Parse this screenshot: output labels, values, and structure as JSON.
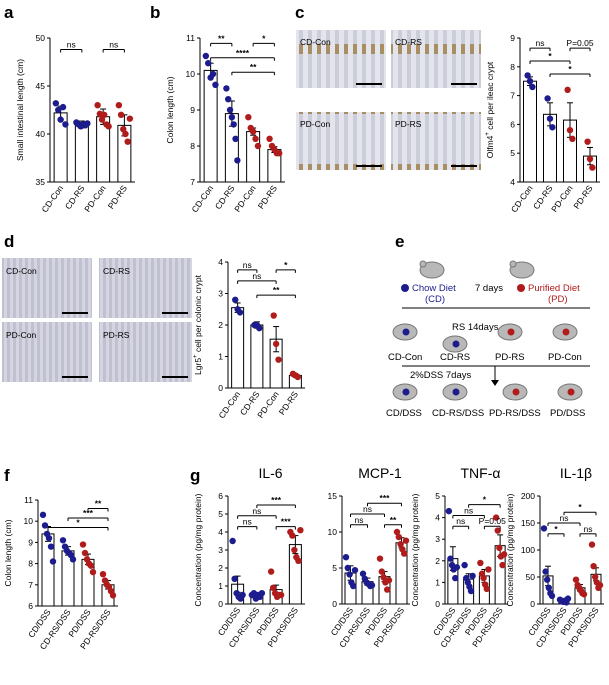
{
  "figure": {
    "panel_letters": [
      "a",
      "b",
      "c",
      "d",
      "e",
      "f",
      "g"
    ],
    "colors": {
      "chow": "#1c1c8e",
      "purified": "#b01c1c",
      "bar_fill": "#ffffff"
    }
  },
  "chart_data": [
    {
      "id": "a",
      "type": "bar",
      "ylabel": "Small intestinal length (cm)",
      "ylim": [
        35,
        50
      ],
      "ticks": [
        35,
        40,
        45,
        50
      ],
      "categories": [
        "CD-Con",
        "CD-RS",
        "PD-Con",
        "PD-RS"
      ],
      "colors": [
        "#1c1c8e",
        "#1c1c8e",
        "#b01c1c",
        "#b01c1c"
      ],
      "means": [
        42.2,
        41.0,
        41.8,
        40.9
      ],
      "errors": [
        0.7,
        0.35,
        0.8,
        1.1
      ],
      "points": [
        [
          43.2,
          42.5,
          41.5,
          42.8,
          41.0
        ],
        [
          41.2,
          41.0,
          40.8,
          41.0,
          40.9,
          41.1
        ],
        [
          43.0,
          42.1,
          41.5,
          42.0,
          41.0,
          40.8
        ],
        [
          43.0,
          42.0,
          40.5,
          40.0,
          39.2,
          41.6
        ]
      ],
      "sig": [
        {
          "from": 0,
          "to": 1,
          "label": "ns",
          "y": 48.8
        },
        {
          "from": 2,
          "to": 3,
          "label": "ns",
          "y": 48.8
        }
      ]
    },
    {
      "id": "b",
      "type": "bar",
      "ylabel": "Colon length (cm)",
      "ylim": [
        7,
        11
      ],
      "ticks": [
        7,
        8,
        9,
        10,
        11
      ],
      "categories": [
        "CD-Con",
        "CD-RS",
        "PD-Con",
        "PD-RS"
      ],
      "colors": [
        "#1c1c8e",
        "#1c1c8e",
        "#b01c1c",
        "#b01c1c"
      ],
      "means": [
        10.1,
        8.9,
        8.4,
        7.9
      ],
      "errors": [
        0.2,
        0.35,
        0.1,
        0.08
      ],
      "points": [
        [
          10.5,
          10.3,
          9.9,
          10.0,
          9.7
        ],
        [
          9.6,
          9.3,
          9.0,
          8.8,
          8.6,
          8.2,
          7.6
        ],
        [
          8.8,
          8.5,
          8.4,
          8.2,
          8.0
        ],
        [
          8.2,
          8.0,
          7.9,
          7.8,
          7.8
        ]
      ],
      "sig": [
        {
          "from": 0,
          "to": 1,
          "label": "**",
          "y": 10.85
        },
        {
          "from": 2,
          "to": 3,
          "label": "*",
          "y": 10.85
        },
        {
          "from": 0,
          "to": 3,
          "label": "****",
          "y": 10.45
        },
        {
          "from": 1,
          "to": 3,
          "label": "**",
          "y": 10.05
        }
      ]
    },
    {
      "id": "c",
      "type": "bar",
      "ylabel_main": "Olfm4",
      "ylabel_sup": "+",
      "ylabel_rest": " cell per ileac crypt",
      "ylim": [
        4,
        9
      ],
      "ticks": [
        4,
        5,
        6,
        7,
        8,
        9
      ],
      "categories": [
        "CD-Con",
        "CD-RS",
        "PD-Con",
        "PD-RS"
      ],
      "colors": [
        "#1c1c8e",
        "#1c1c8e",
        "#b01c1c",
        "#b01c1c"
      ],
      "means": [
        7.5,
        6.35,
        6.15,
        4.9
      ],
      "errors": [
        0.15,
        0.4,
        0.6,
        0.3
      ],
      "points": [
        [
          7.7,
          7.5,
          7.3
        ],
        [
          6.9,
          6.2,
          5.9
        ],
        [
          7.2,
          5.8,
          5.5
        ],
        [
          5.4,
          4.8,
          4.5
        ]
      ],
      "sig": [
        {
          "from": 0,
          "to": 1,
          "label": "ns",
          "y": 8.65
        },
        {
          "from": 2,
          "to": 3,
          "label": "P=0.05",
          "y": 8.65
        },
        {
          "from": 0,
          "to": 2,
          "label": "*",
          "y": 8.2
        },
        {
          "from": 1,
          "to": 3,
          "label": "*",
          "y": 7.75
        }
      ]
    },
    {
      "id": "d",
      "type": "bar",
      "ylabel_main": "Lgr5",
      "ylabel_sup": "+",
      "ylabel_rest": " cell per colonic crypt",
      "ylim": [
        0,
        4
      ],
      "ticks": [
        0,
        1,
        2,
        3,
        4
      ],
      "categories": [
        "CD-Con",
        "CD-RS",
        "PD-Con",
        "PD-RS"
      ],
      "colors": [
        "#1c1c8e",
        "#1c1c8e",
        "#b01c1c",
        "#b01c1c"
      ],
      "means": [
        2.55,
        2.0,
        1.55,
        0.4
      ],
      "errors": [
        0.15,
        0.1,
        0.4,
        0.05
      ],
      "points": [
        [
          2.8,
          2.5,
          2.4
        ],
        [
          2.0,
          2.0,
          1.9
        ],
        [
          2.3,
          1.4,
          0.9
        ],
        [
          0.45,
          0.4,
          0.35
        ]
      ],
      "sig": [
        {
          "from": 0,
          "to": 1,
          "label": "ns",
          "y": 3.75
        },
        {
          "from": 2,
          "to": 3,
          "label": "*",
          "y": 3.75
        },
        {
          "from": 0,
          "to": 2,
          "label": "ns",
          "y": 3.4
        },
        {
          "from": 1,
          "to": 3,
          "label": "**",
          "y": 2.95
        }
      ]
    },
    {
      "id": "f",
      "type": "bar",
      "ylabel": "Colon length (cm)",
      "ylim": [
        6,
        11
      ],
      "ticks": [
        6,
        7,
        8,
        9,
        10,
        11
      ],
      "categories": [
        "CD/DSS",
        "CD-RS/DSS",
        "PD/DSS",
        "PD-RS/DSS"
      ],
      "colors": [
        "#1c1c8e",
        "#1c1c8e",
        "#b01c1c",
        "#b01c1c"
      ],
      "means": [
        9.4,
        8.6,
        8.2,
        7.0
      ],
      "errors": [
        0.35,
        0.2,
        0.25,
        0.2
      ],
      "points": [
        [
          10.3,
          9.8,
          9.4,
          9.2,
          8.8,
          8.1
        ],
        [
          9.1,
          8.8,
          8.6,
          8.5,
          8.4,
          8.2
        ],
        [
          8.9,
          8.5,
          8.2,
          8.0,
          7.9,
          7.6
        ],
        [
          7.5,
          7.2,
          7.0,
          6.9,
          6.7,
          6.5
        ]
      ],
      "sig": [
        {
          "from": 2,
          "to": 3,
          "label": "**",
          "y": 10.6
        },
        {
          "from": 1,
          "to": 3,
          "label": "***",
          "y": 10.15
        },
        {
          "from": 0,
          "to": 3,
          "label": "*",
          "y": 9.7
        }
      ]
    },
    {
      "id": "g-il6",
      "type": "bar",
      "title": "IL-6",
      "ylabel": "Concentration (pg/mg protein)",
      "ylim": [
        0,
        6
      ],
      "ticks": [
        0,
        1,
        2,
        3,
        4,
        5,
        6
      ],
      "categories": [
        "CD/DSS",
        "CD-RS/DSS",
        "PD/DSS",
        "PD-RS/DSS"
      ],
      "colors": [
        "#1c1c8e",
        "#1c1c8e",
        "#b01c1c",
        "#b01c1c"
      ],
      "means": [
        1.1,
        0.5,
        0.8,
        3.3
      ],
      "errors": [
        0.45,
        0.1,
        0.25,
        0.5
      ],
      "points": [
        [
          3.5,
          1.4,
          0.6,
          0.4,
          0.3,
          0.5
        ],
        [
          0.5,
          0.6,
          0.3,
          0.5,
          0.4,
          0.6
        ],
        [
          1.8,
          0.9,
          0.6,
          0.4,
          0.5,
          0.5
        ],
        [
          4.0,
          3.8,
          3.0,
          2.6,
          2.4,
          4.1
        ]
      ],
      "sig": [
        {
          "from": 0,
          "to": 1,
          "label": "ns",
          "y": 4.3
        },
        {
          "from": 2,
          "to": 3,
          "label": "***",
          "y": 4.3
        },
        {
          "from": 0,
          "to": 2,
          "label": "ns",
          "y": 4.9
        },
        {
          "from": 1,
          "to": 3,
          "label": "***",
          "y": 5.5
        }
      ]
    },
    {
      "id": "g-mcp1",
      "type": "bar",
      "title": "MCP-1",
      "ylabel": "",
      "ylim": [
        0,
        15
      ],
      "ticks": [
        0,
        5,
        10,
        15
      ],
      "categories": [
        "CD/DSS",
        "CD-RS/DSS",
        "PD/DSS",
        "PD-RS/DSS"
      ],
      "colors": [
        "#1c1c8e",
        "#1c1c8e",
        "#b01c1c",
        "#b01c1c"
      ],
      "means": [
        4.3,
        3.1,
        3.8,
        8.5
      ],
      "errors": [
        1.0,
        0.5,
        0.7,
        0.7
      ],
      "points": [
        [
          6.5,
          5.0,
          4.1,
          3.0,
          2.5,
          4.7
        ],
        [
          4.2,
          3.5,
          3.0,
          2.8,
          2.5,
          2.6
        ],
        [
          6.3,
          4.5,
          3.7,
          3.0,
          2.0,
          3.3
        ],
        [
          10.0,
          9.3,
          8.3,
          7.6,
          7.0,
          8.8
        ]
      ],
      "sig": [
        {
          "from": 0,
          "to": 1,
          "label": "ns",
          "y": 11.0
        },
        {
          "from": 2,
          "to": 3,
          "label": "**",
          "y": 11.0
        },
        {
          "from": 0,
          "to": 2,
          "label": "ns",
          "y": 12.5
        },
        {
          "from": 1,
          "to": 3,
          "label": "***",
          "y": 14.0
        }
      ]
    },
    {
      "id": "g-tnf",
      "type": "bar",
      "title": "TNF-α",
      "ylabel": "Concentration (pg/mg protein)",
      "ylim": [
        0,
        5
      ],
      "ticks": [
        0,
        1,
        2,
        3,
        4,
        5
      ],
      "categories": [
        "CD/DSS",
        "CD-RS/DSS",
        "PD/DSS",
        "PD-RS/DSS"
      ],
      "colors": [
        "#1c1c8e",
        "#1c1c8e",
        "#b01c1c",
        "#b01c1c"
      ],
      "means": [
        2.1,
        1.15,
        1.3,
        2.7
      ],
      "errors": [
        0.55,
        0.25,
        0.3,
        0.5
      ],
      "points": [
        [
          4.3,
          2.1,
          1.8,
          1.6,
          1.2,
          1.7
        ],
        [
          1.8,
          1.2,
          1.0,
          0.8,
          0.6,
          1.3
        ],
        [
          1.9,
          1.4,
          1.2,
          0.9,
          0.7,
          1.6
        ],
        [
          4.0,
          3.4,
          2.6,
          2.2,
          1.8,
          2.3
        ]
      ],
      "sig": [
        {
          "from": 0,
          "to": 1,
          "label": "ns",
          "y": 3.6
        },
        {
          "from": 2,
          "to": 3,
          "label": "P=0.05",
          "y": 3.6
        },
        {
          "from": 0,
          "to": 2,
          "label": "ns",
          "y": 4.1
        },
        {
          "from": 1,
          "to": 3,
          "label": "*",
          "y": 4.6
        }
      ]
    },
    {
      "id": "g-il1b",
      "type": "bar",
      "title": "IL-1β",
      "ylabel": "Concentration (pg/mg protein)",
      "ylim": [
        0,
        200
      ],
      "ticks": [
        0,
        50,
        100,
        150,
        200
      ],
      "categories": [
        "CD/DSS",
        "CD-RS/DSS",
        "PD/DSS",
        "PD-RS/DSS"
      ],
      "colors": [
        "#1c1c8e",
        "#1c1c8e",
        "#b01c1c",
        "#b01c1c"
      ],
      "means": [
        52,
        6,
        30,
        55
      ],
      "errors": [
        18,
        2,
        6,
        12
      ],
      "points": [
        [
          140,
          60,
          45,
          30,
          20,
          15
        ],
        [
          8,
          5,
          4,
          6,
          3,
          10
        ],
        [
          45,
          35,
          30,
          25,
          20,
          18
        ],
        [
          110,
          70,
          50,
          40,
          30,
          35
        ]
      ],
      "sig": [
        {
          "from": 0,
          "to": 1,
          "label": "*",
          "y": 130
        },
        {
          "from": 2,
          "to": 3,
          "label": "ns",
          "y": 130
        },
        {
          "from": 0,
          "to": 2,
          "label": "ns",
          "y": 150
        },
        {
          "from": 1,
          "to": 3,
          "label": "*",
          "y": 170
        }
      ]
    }
  ],
  "micrographs_c": {
    "labels": [
      "CD-Con",
      "CD-RS",
      "PD-Con",
      "PD-RS"
    ]
  },
  "micrographs_d": {
    "labels": [
      "CD-Con",
      "CD-RS",
      "PD-Con",
      "PD-RS"
    ]
  },
  "schematic_e": {
    "chow_diet": "Chow Diet",
    "chow_abbr": "(CD)",
    "purified_diet": "Purified Diet",
    "purified_abbr": "(PD)",
    "duration_diet": "7 days",
    "rs_treatment": "RS 14days",
    "groups": [
      "CD-Con",
      "CD-RS",
      "PD-RS",
      "PD-Con"
    ],
    "dss_treatment": "2%DSS 7days",
    "dss_groups": [
      "CD/DSS",
      "CD-RS/DSS",
      "PD-RS/DSS",
      "PD/DSS"
    ]
  }
}
